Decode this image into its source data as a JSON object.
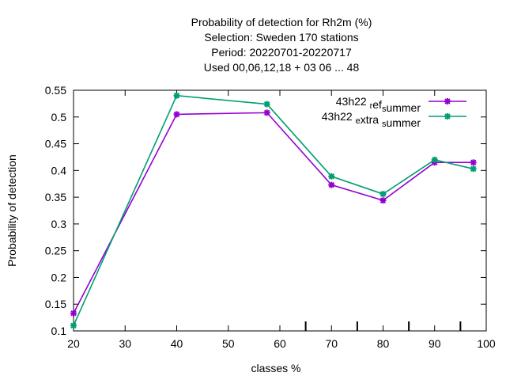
{
  "chart_data": {
    "type": "line",
    "title_lines": [
      "Probability of detection  for Rh2m (%)",
      "Selection: Sweden    170 stations",
      "Period: 20220701-20220717",
      "Used  00,06,12,18  + 03 06 ... 48"
    ],
    "xlabel": "classes %",
    "ylabel": "Probability of detection",
    "xlim": [
      20,
      100
    ],
    "ylim": [
      0.1,
      0.55
    ],
    "xticks": [
      20,
      30,
      40,
      50,
      60,
      70,
      80,
      90,
      100
    ],
    "yticks": [
      0.1,
      0.15,
      0.2,
      0.25,
      0.3,
      0.35,
      0.4,
      0.45,
      0.5,
      0.55
    ],
    "minor_xticks": [
      65,
      75,
      85,
      95
    ],
    "legend_position": "top-right",
    "series": [
      {
        "legend_text": "43h22 ref summer",
        "legend_rendered": [
          [
            "43h22 ",
            "normal"
          ],
          [
            "r",
            "sub"
          ],
          [
            "ef",
            "normal"
          ],
          [
            "s",
            "sub"
          ],
          [
            "ummer",
            "normal"
          ]
        ],
        "color": "#9400d3",
        "x": [
          20,
          40,
          57.5,
          70,
          80,
          90,
          97.5
        ],
        "y": [
          0.133,
          0.505,
          0.508,
          0.373,
          0.344,
          0.415,
          0.415
        ]
      },
      {
        "legend_text": "43h22 extra summer",
        "legend_rendered": [
          [
            "43h22 ",
            "normal"
          ],
          [
            "e",
            "sub"
          ],
          [
            "xtra ",
            "normal"
          ],
          [
            "s",
            "sub"
          ],
          [
            "ummer",
            "normal"
          ]
        ],
        "color": "#009e73",
        "x": [
          20,
          40,
          57.5,
          70,
          80,
          90,
          97.5
        ],
        "y": [
          0.11,
          0.54,
          0.524,
          0.389,
          0.356,
          0.42,
          0.403
        ]
      }
    ]
  }
}
